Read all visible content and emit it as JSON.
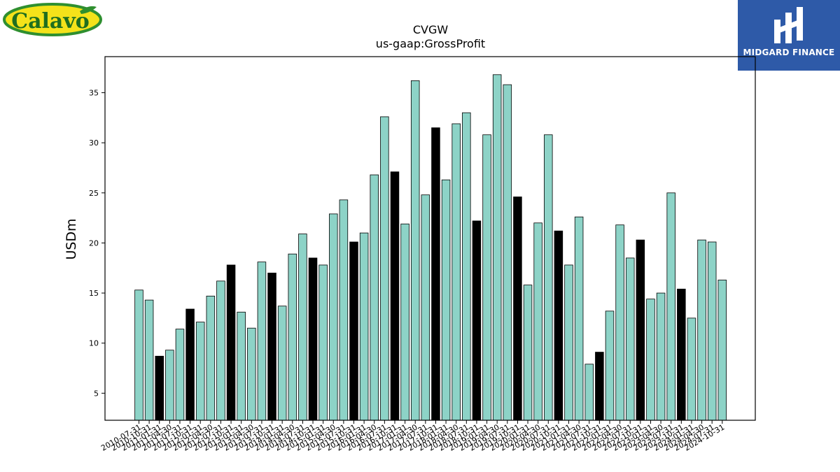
{
  "logos": {
    "left_text": "Calavo",
    "right_text": "MIDGARD FINANCE"
  },
  "colors": {
    "bar": "#8dd3c7",
    "highlight_bar": "#000000",
    "logo_right_bg": "#2e5aa8",
    "logo_left_green": "#2f8f2f",
    "logo_left_yellow": "#f4e21a"
  },
  "chart_data": {
    "type": "bar",
    "title": "CVGW",
    "subtitle": "us-gaap:GrossProfit",
    "xlabel": "",
    "ylabel": "USDm",
    "ylim": [
      2.3,
      38.6
    ],
    "yticks": [
      5,
      10,
      15,
      20,
      25,
      30,
      35
    ],
    "grid": false,
    "categories": [
      "2010-07-31",
      "2010-10-31",
      "2011-01-31",
      "2011-04-30",
      "2011-07-31",
      "2011-10-31",
      "2012-01-31",
      "2012-04-30",
      "2012-07-31",
      "2012-10-31",
      "2013-01-31",
      "2013-04-30",
      "2013-07-31",
      "2013-10-31",
      "2014-01-31",
      "2014-04-30",
      "2014-07-31",
      "2014-10-31",
      "2015-01-31",
      "2015-04-30",
      "2015-07-31",
      "2015-10-31",
      "2016-01-31",
      "2016-04-30",
      "2016-07-31",
      "2016-10-31",
      "2017-01-31",
      "2017-04-30",
      "2017-07-31",
      "2017-10-31",
      "2018-01-31",
      "2018-04-30",
      "2018-07-31",
      "2018-10-31",
      "2019-01-31",
      "2019-04-30",
      "2019-07-31",
      "2019-10-31",
      "2020-01-31",
      "2020-04-30",
      "2020-07-31",
      "2020-10-31",
      "2021-01-31",
      "2021-04-30",
      "2021-07-31",
      "2021-10-31",
      "2022-01-31",
      "2022-04-30",
      "2022-07-31",
      "2022-10-31",
      "2023-01-31",
      "2023-04-30",
      "2023-07-31",
      "2023-10-31",
      "2024-01-31",
      "2024-04-30",
      "2024-07-31",
      "2024-10-31"
    ],
    "values": [
      15.3,
      14.3,
      8.7,
      9.3,
      11.4,
      13.4,
      12.1,
      14.7,
      16.2,
      17.8,
      13.1,
      11.5,
      18.1,
      17.0,
      13.7,
      18.9,
      20.9,
      18.5,
      17.8,
      22.9,
      24.3,
      20.1,
      21.0,
      26.8,
      32.6,
      27.1,
      21.9,
      36.2,
      24.8,
      31.5,
      26.3,
      31.9,
      33.0,
      22.2,
      30.8,
      36.8,
      35.8,
      24.6,
      15.8,
      22.0,
      30.8,
      21.2,
      17.8,
      22.6,
      7.9,
      9.1,
      13.2,
      21.8,
      18.5,
      20.3,
      14.4,
      15.0,
      25.0,
      15.4,
      12.5,
      20.3,
      20.1,
      16.3
    ],
    "highlighted_categories": [
      "2011-01-31",
      "2011-10-31",
      "2012-10-31",
      "2013-10-31",
      "2014-10-31",
      "2015-10-31",
      "2016-10-31",
      "2017-10-31",
      "2018-10-31",
      "2019-10-31",
      "2020-10-31",
      "2021-10-31",
      "2022-10-31",
      "2023-10-31"
    ]
  }
}
